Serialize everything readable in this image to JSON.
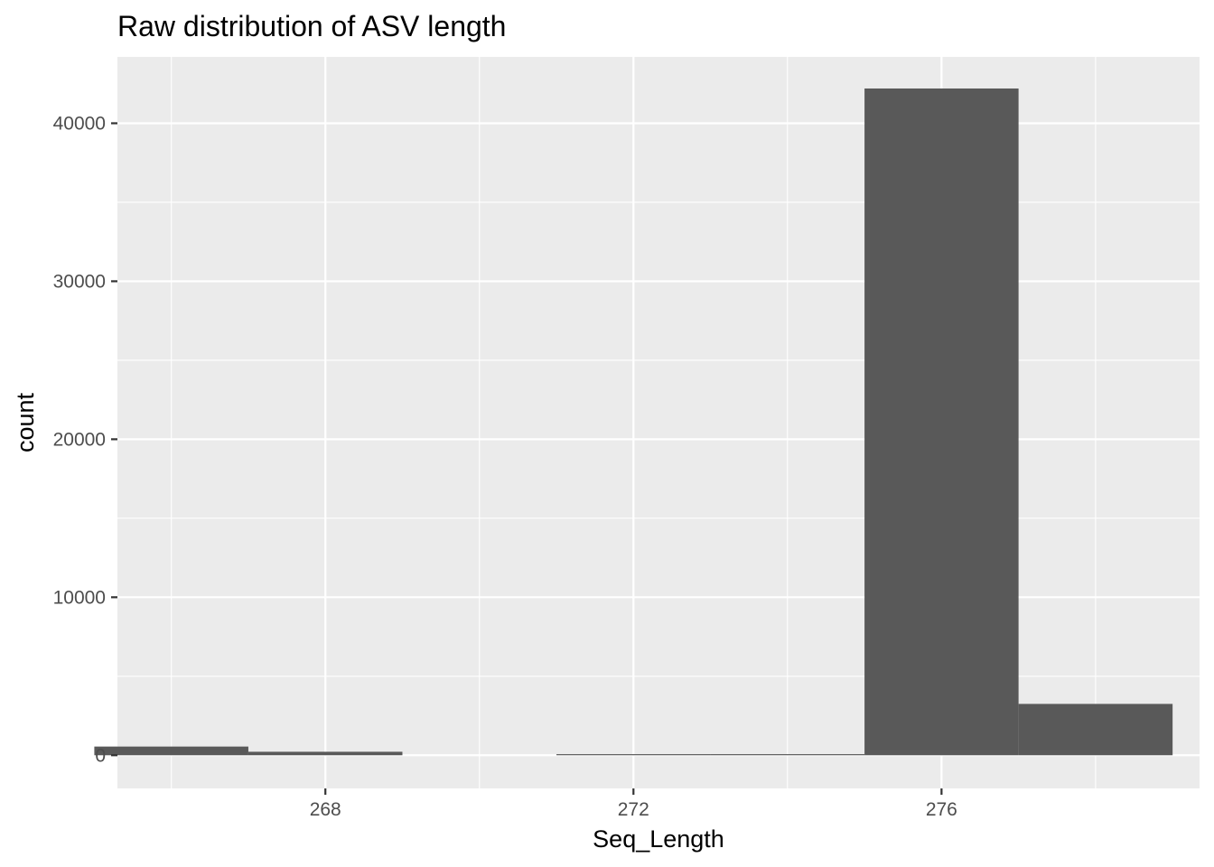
{
  "chart_data": {
    "type": "bar",
    "title": "Raw distribution of ASV length",
    "xlabel": "Seq_Length",
    "ylabel": "count",
    "xlim": [
      265.3,
      279.35
    ],
    "ylim": [
      -2100,
      44200
    ],
    "x_ticks": [
      268,
      272,
      276
    ],
    "x_minor": [
      266,
      270,
      274,
      278
    ],
    "y_ticks": [
      0,
      10000,
      20000,
      30000,
      40000
    ],
    "y_minor": [
      5000,
      15000,
      25000,
      35000
    ],
    "bin_width": 2,
    "bins": [
      {
        "x0": 265,
        "x1": 267,
        "count": 550
      },
      {
        "x0": 267,
        "x1": 269,
        "count": 220
      },
      {
        "x0": 269,
        "x1": 271,
        "count": 0
      },
      {
        "x0": 271,
        "x1": 273,
        "count": 40
      },
      {
        "x0": 273,
        "x1": 275,
        "count": 50
      },
      {
        "x0": 275,
        "x1": 277,
        "count": 42200
      },
      {
        "x0": 277,
        "x1": 279,
        "count": 3250
      }
    ],
    "bar_color": "#595959",
    "panel_background": "#ebebeb",
    "grid": true,
    "legend": "none"
  }
}
